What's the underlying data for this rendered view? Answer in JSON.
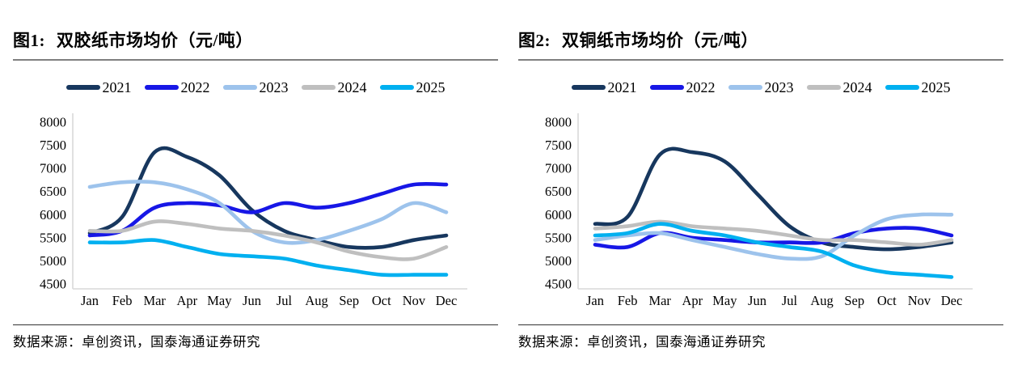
{
  "chart_data": [
    {
      "type": "line",
      "figure_label": "图1:",
      "title": "双胶纸市场均价（元/吨）",
      "source_note": "数据来源：卓创资讯，国泰海通证券研究",
      "categories": [
        "Jan",
        "Feb",
        "Mar",
        "Apr",
        "May",
        "Jun",
        "Jul",
        "Aug",
        "Sep",
        "Oct",
        "Nov",
        "Dec"
      ],
      "ylim": [
        4500,
        8000
      ],
      "yticks": [
        8000,
        7500,
        7000,
        6500,
        6000,
        5500,
        5000,
        4500
      ],
      "grid": false,
      "legend_position": "top",
      "axis_color": "#d9d9d9",
      "series": [
        {
          "name": "2021",
          "color": "#17375e",
          "values": [
            5600,
            5950,
            7350,
            7250,
            6850,
            6100,
            5650,
            5450,
            5300,
            5300,
            5450,
            5550
          ]
        },
        {
          "name": "2022",
          "color": "#1717e6",
          "values": [
            5550,
            5650,
            6150,
            6250,
            6200,
            6050,
            6250,
            6150,
            6250,
            6450,
            6650,
            6650
          ]
        },
        {
          "name": "2023",
          "color": "#9dc3ec",
          "values": [
            6600,
            6700,
            6700,
            6550,
            6250,
            5650,
            5400,
            5450,
            5650,
            5900,
            6250,
            6050
          ]
        },
        {
          "name": "2024",
          "color": "#bfbfbf",
          "values": [
            5650,
            5650,
            5850,
            5800,
            5700,
            5650,
            5550,
            5400,
            5200,
            5080,
            5050,
            5300
          ]
        },
        {
          "name": "2025",
          "color": "#00b0f0",
          "values": [
            5400,
            5400,
            5450,
            5300,
            5150,
            5100,
            5050,
            4900,
            4800,
            4700,
            4700,
            4700
          ]
        }
      ]
    },
    {
      "type": "line",
      "figure_label": "图2:",
      "title": "双铜纸市场均价（元/吨）",
      "source_note": "数据来源：卓创资讯，国泰海通证券研究",
      "categories": [
        "Jan",
        "Feb",
        "Mar",
        "Apr",
        "May",
        "Jun",
        "Jul",
        "Aug",
        "Sep",
        "Oct",
        "Nov",
        "Dec"
      ],
      "ylim": [
        4500,
        8000
      ],
      "yticks": [
        8000,
        7500,
        7000,
        6500,
        6000,
        5500,
        5000,
        4500
      ],
      "grid": false,
      "legend_position": "top",
      "axis_color": "#d9d9d9",
      "series": [
        {
          "name": "2021",
          "color": "#17375e",
          "values": [
            5800,
            5950,
            7300,
            7350,
            7150,
            6450,
            5750,
            5400,
            5300,
            5250,
            5300,
            5400
          ]
        },
        {
          "name": "2022",
          "color": "#1717e6",
          "values": [
            5350,
            5300,
            5600,
            5500,
            5450,
            5400,
            5400,
            5400,
            5600,
            5700,
            5700,
            5550
          ]
        },
        {
          "name": "2023",
          "color": "#9dc3ec",
          "values": [
            5450,
            5550,
            5600,
            5450,
            5300,
            5150,
            5050,
            5100,
            5550,
            5900,
            6000,
            6000
          ]
        },
        {
          "name": "2024",
          "color": "#bfbfbf",
          "values": [
            5700,
            5750,
            5850,
            5750,
            5700,
            5650,
            5550,
            5450,
            5450,
            5400,
            5350,
            5450
          ]
        },
        {
          "name": "2025",
          "color": "#00b0f0",
          "values": [
            5550,
            5600,
            5800,
            5650,
            5550,
            5400,
            5300,
            5200,
            4900,
            4750,
            4700,
            4650
          ]
        }
      ]
    }
  ]
}
